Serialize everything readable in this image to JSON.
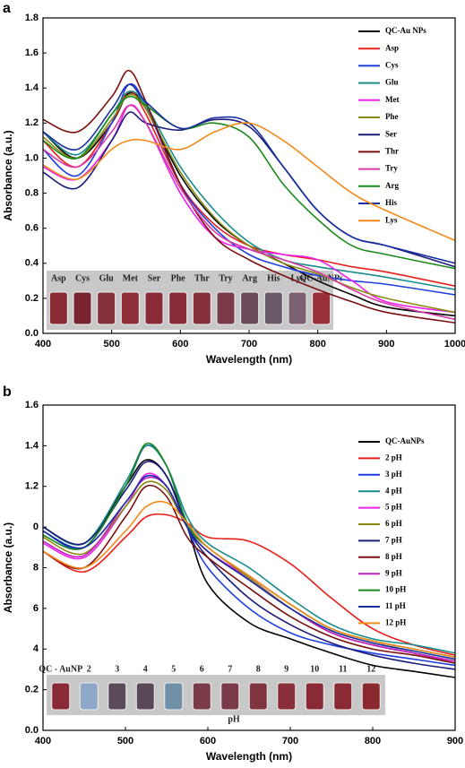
{
  "chart_data": [
    {
      "type": "line",
      "panel_label": "a",
      "x_label": "Wavelength (nm)",
      "y_label": "Absorbance (a.u.)",
      "xlim": [
        400,
        1000
      ],
      "xticks": [
        400,
        500,
        600,
        700,
        800,
        900,
        1000
      ],
      "ylim": [
        0,
        1.8
      ],
      "yticks": [
        {
          "value": 0,
          "label": "0.0"
        },
        0.2,
        0.4,
        0.6,
        0.8,
        {
          "value": 1,
          "label": "1.0"
        },
        1.2,
        1.4,
        1.6,
        1.8
      ],
      "x": [
        400,
        450,
        500,
        525,
        550,
        600,
        650,
        700,
        750,
        800,
        850,
        900,
        1000
      ],
      "series": [
        {
          "name": "QC-Au NPs",
          "color": "#000000",
          "values": [
            1.15,
            1.0,
            1.2,
            1.37,
            1.28,
            0.9,
            0.65,
            0.5,
            0.4,
            0.3,
            0.22,
            0.15,
            0.1
          ]
        },
        {
          "name": "Asp",
          "color": "#e8201c",
          "values": [
            1.1,
            0.95,
            1.2,
            1.38,
            1.25,
            0.85,
            0.62,
            0.5,
            0.45,
            0.42,
            0.38,
            0.35,
            0.27
          ]
        },
        {
          "name": "Cys",
          "color": "#1f3ee0",
          "values": [
            1.05,
            0.9,
            1.2,
            1.42,
            1.3,
            0.85,
            0.6,
            0.45,
            0.38,
            0.33,
            0.3,
            0.28,
            0.22
          ]
        },
        {
          "name": "Glu",
          "color": "#1a8c8c",
          "values": [
            1.15,
            1.02,
            1.25,
            1.38,
            1.3,
            0.95,
            0.7,
            0.52,
            0.42,
            0.38,
            0.35,
            0.32,
            0.25
          ]
        },
        {
          "name": "Met",
          "color": "#ee22ee",
          "values": [
            0.95,
            0.88,
            1.1,
            1.3,
            1.2,
            0.8,
            0.55,
            0.48,
            0.45,
            0.42,
            0.3,
            0.18,
            0.12
          ]
        },
        {
          "name": "Phe",
          "color": "#8a8a10",
          "values": [
            1.12,
            1.0,
            1.22,
            1.36,
            1.28,
            0.92,
            0.66,
            0.5,
            0.4,
            0.34,
            0.26,
            0.2,
            0.12
          ]
        },
        {
          "name": "Ser",
          "color": "#1c1c7a",
          "values": [
            0.92,
            0.83,
            1.1,
            1.26,
            1.2,
            1.16,
            1.22,
            1.18,
            0.95,
            0.7,
            0.55,
            0.5,
            0.38
          ]
        },
        {
          "name": "Thr",
          "color": "#7a1010",
          "values": [
            1.22,
            1.15,
            1.35,
            1.5,
            1.32,
            0.85,
            0.55,
            0.42,
            0.33,
            0.25,
            0.18,
            0.12,
            0.06
          ]
        },
        {
          "name": "Try",
          "color": "#d838a8",
          "values": [
            1.05,
            0.95,
            1.15,
            1.3,
            1.2,
            0.83,
            0.58,
            0.48,
            0.42,
            0.35,
            0.25,
            0.17,
            0.08
          ]
        },
        {
          "name": "Arg",
          "color": "#1a8a1a",
          "values": [
            1.1,
            1.0,
            1.25,
            1.35,
            1.3,
            1.17,
            1.2,
            1.12,
            0.85,
            0.65,
            0.5,
            0.45,
            0.37
          ]
        },
        {
          "name": "His",
          "color": "#1830a0",
          "values": [
            1.15,
            1.05,
            1.28,
            1.42,
            1.32,
            1.17,
            1.23,
            1.2,
            0.95,
            0.7,
            0.55,
            0.5,
            0.4
          ]
        },
        {
          "name": "Lys",
          "color": "#f28a1a",
          "values": [
            0.96,
            0.88,
            1.05,
            1.1,
            1.1,
            1.05,
            1.15,
            1.2,
            1.1,
            0.95,
            0.8,
            0.7,
            0.53
          ]
        }
      ],
      "inset_labels": [
        "Asp",
        "Cys",
        "Glu",
        "Met",
        "Ser",
        "Phe",
        "Thr",
        "Try",
        "Arg",
        "His",
        "Lys",
        "QC-AuNPs"
      ]
    },
    {
      "type": "line",
      "panel_label": "b",
      "x_label": "Wavelength (nm)",
      "y_label": "Absorbance (a.u.)",
      "xlim": [
        400,
        900
      ],
      "xticks": [
        400,
        500,
        600,
        700,
        800,
        900
      ],
      "ylim": [
        0,
        1.6
      ],
      "yticks": [
        {
          "value": 0,
          "label": "0.0"
        },
        0.2,
        {
          "value": 0.4,
          "label": "4"
        },
        {
          "value": 0.6,
          "label": "6"
        },
        {
          "value": 0.8,
          "label": "8"
        },
        {
          "value": 1,
          "label": "0"
        },
        1.2,
        1.4,
        1.6
      ],
      "x": [
        400,
        450,
        500,
        525,
        550,
        575,
        600,
        650,
        700,
        750,
        800,
        850,
        900
      ],
      "series": [
        {
          "name": "QC-AuNPs",
          "color": "#000000",
          "values": [
            1.0,
            0.92,
            1.2,
            1.33,
            1.25,
            1.0,
            0.72,
            0.53,
            0.45,
            0.38,
            0.32,
            0.29,
            0.26
          ]
        },
        {
          "name": "2 pH",
          "color": "#e8201c",
          "values": [
            0.88,
            0.78,
            0.95,
            1.05,
            1.06,
            1.02,
            0.95,
            0.93,
            0.82,
            0.65,
            0.5,
            0.42,
            0.37
          ]
        },
        {
          "name": "3 pH",
          "color": "#1f3ee0",
          "values": [
            0.98,
            0.9,
            1.2,
            1.4,
            1.3,
            1.0,
            0.8,
            0.6,
            0.48,
            0.42,
            0.38,
            0.35,
            0.32
          ]
        },
        {
          "name": "4 pH",
          "color": "#1a8c8c",
          "values": [
            1.0,
            0.92,
            1.22,
            1.4,
            1.3,
            1.05,
            0.92,
            0.8,
            0.65,
            0.52,
            0.45,
            0.42,
            0.38
          ]
        },
        {
          "name": "5 pH",
          "color": "#ee22ee",
          "values": [
            0.92,
            0.85,
            1.1,
            1.26,
            1.2,
            1.0,
            0.88,
            0.75,
            0.6,
            0.48,
            0.42,
            0.38,
            0.33
          ]
        },
        {
          "name": "6 pH",
          "color": "#8a8a10",
          "values": [
            0.95,
            0.87,
            1.1,
            1.22,
            1.18,
            1.0,
            0.9,
            0.75,
            0.6,
            0.48,
            0.42,
            0.38,
            0.34
          ]
        },
        {
          "name": "7 pH",
          "color": "#1c1c7a",
          "values": [
            1.0,
            0.92,
            1.18,
            1.32,
            1.25,
            1.0,
            0.85,
            0.65,
            0.52,
            0.43,
            0.37,
            0.33,
            0.3
          ]
        },
        {
          "name": "8 pH",
          "color": "#7a1010",
          "values": [
            0.88,
            0.8,
            1.05,
            1.2,
            1.15,
            0.95,
            0.85,
            0.7,
            0.56,
            0.46,
            0.4,
            0.37,
            0.33
          ]
        },
        {
          "name": "9 pH",
          "color": "#c020c0",
          "values": [
            0.93,
            0.86,
            1.12,
            1.24,
            1.2,
            1.0,
            0.88,
            0.74,
            0.6,
            0.48,
            0.42,
            0.38,
            0.34
          ]
        },
        {
          "name": "10 pH",
          "color": "#1a8a1a",
          "values": [
            0.96,
            0.9,
            1.2,
            1.41,
            1.3,
            1.02,
            0.9,
            0.76,
            0.62,
            0.5,
            0.44,
            0.4,
            0.36
          ]
        },
        {
          "name": "11 pH",
          "color": "#1830a0",
          "values": [
            0.98,
            0.9,
            1.12,
            1.25,
            1.2,
            1.0,
            0.88,
            0.74,
            0.6,
            0.49,
            0.43,
            0.39,
            0.35
          ]
        },
        {
          "name": "12 pH",
          "color": "#f28a1a",
          "values": [
            0.88,
            0.8,
            0.98,
            1.1,
            1.12,
            1.02,
            0.9,
            0.76,
            0.62,
            0.5,
            0.44,
            0.4,
            0.36
          ]
        }
      ],
      "inset_labels": [
        "QC - AuNP",
        "2",
        "3",
        "4",
        "5",
        "6",
        "7",
        "8",
        "9",
        "10",
        "11",
        "12"
      ],
      "inset_title": "pH"
    }
  ]
}
